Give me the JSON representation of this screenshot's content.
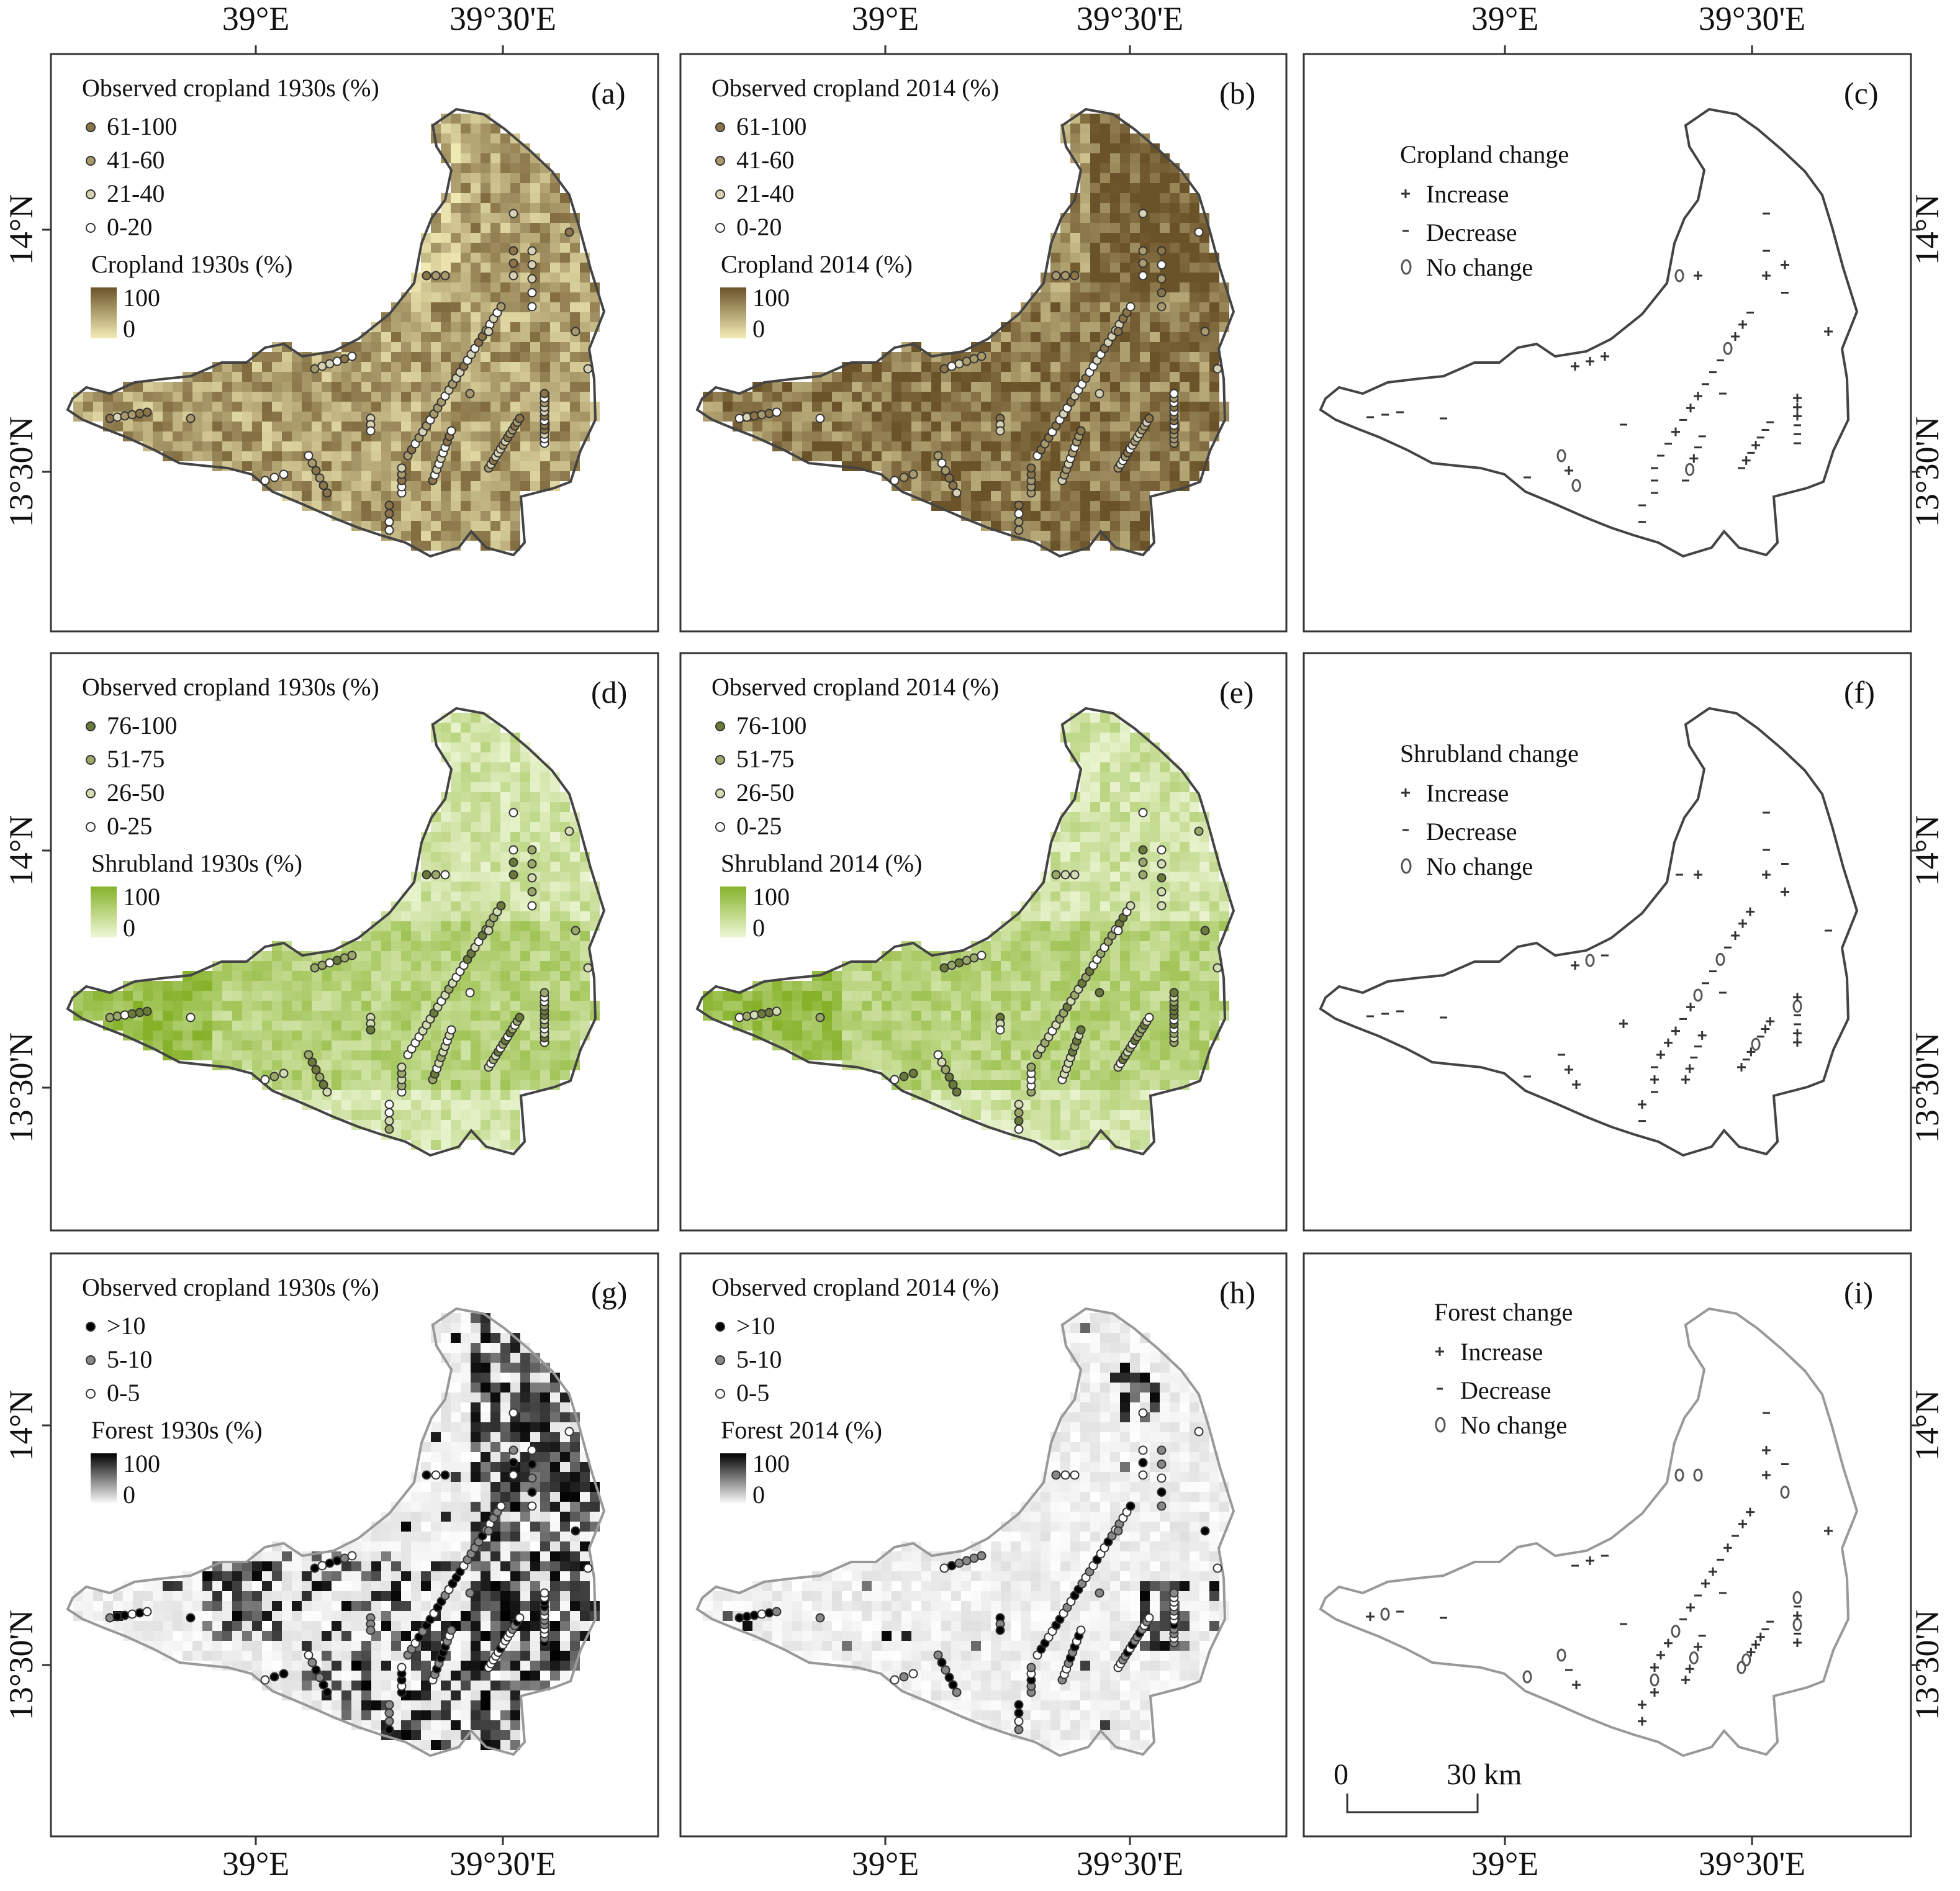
{
  "axes": {
    "lon_left": "39°E",
    "lon_right": "39°30'E",
    "lat_upper": "14°N",
    "lat_lower": "13°30'N"
  },
  "colors": {
    "cropland_ramp": [
      "#f3edb6",
      "#6b5329"
    ],
    "shrubland_ramp": [
      "#eef7d7",
      "#86b22a"
    ],
    "forest_ramp": [
      "#ffffff",
      "#000000"
    ],
    "outline": "#444444"
  },
  "panels": [
    {
      "tag": "(a)",
      "kind": "map",
      "theme": "cropland",
      "points_title": "Observed cropland 1930s (%)",
      "classes": [
        "61-100",
        "41-60",
        "21-40",
        "0-20"
      ],
      "raster_title": "Cropland 1930s (%)",
      "ramp_max": "100",
      "ramp_min": "0"
    },
    {
      "tag": "(b)",
      "kind": "map",
      "theme": "cropland",
      "points_title": "Observed cropland 2014 (%)",
      "classes": [
        "61-100",
        "41-60",
        "21-40",
        "0-20"
      ],
      "raster_title": "Cropland 2014 (%)",
      "ramp_max": "100",
      "ramp_min": "0"
    },
    {
      "tag": "(c)",
      "kind": "change",
      "change_title": "Cropland change",
      "increase": "Increase",
      "decrease": "Decrease",
      "nochange": "No change"
    },
    {
      "tag": "(d)",
      "kind": "map",
      "theme": "shrubland",
      "points_title": "Observed cropland 1930s (%)",
      "classes": [
        "76-100",
        "51-75",
        "26-50",
        "0-25"
      ],
      "raster_title": "Shrubland 1930s (%)",
      "ramp_max": "100",
      "ramp_min": "0"
    },
    {
      "tag": "(e)",
      "kind": "map",
      "theme": "shrubland",
      "points_title": "Observed cropland 2014 (%)",
      "classes": [
        "76-100",
        "51-75",
        "26-50",
        "0-25"
      ],
      "raster_title": "Shrubland 2014 (%)",
      "ramp_max": "100",
      "ramp_min": "0"
    },
    {
      "tag": "(f)",
      "kind": "change",
      "change_title": "Shrubland change",
      "increase": "Increase",
      "decrease": "Decrease",
      "nochange": "No change"
    },
    {
      "tag": "(g)",
      "kind": "map",
      "theme": "forest",
      "points_title": "Observed cropland 1930s (%)",
      "classes": [
        ">10",
        "5-10",
        "0-5"
      ],
      "raster_title": "Forest 1930s (%)",
      "ramp_max": "100",
      "ramp_min": "0"
    },
    {
      "tag": "(h)",
      "kind": "map",
      "theme": "forest",
      "points_title": "Observed cropland 2014 (%)",
      "classes": [
        ">10",
        "5-10",
        "0-5"
      ],
      "raster_title": "Forest 2014 (%)",
      "ramp_max": "100",
      "ramp_min": "0"
    },
    {
      "tag": "(i)",
      "kind": "change",
      "change_title": "Forest change",
      "increase": "Increase",
      "decrease": "Decrease",
      "nochange": "No change",
      "scale_zero": "0",
      "scale_dist": "30 km"
    }
  ]
}
